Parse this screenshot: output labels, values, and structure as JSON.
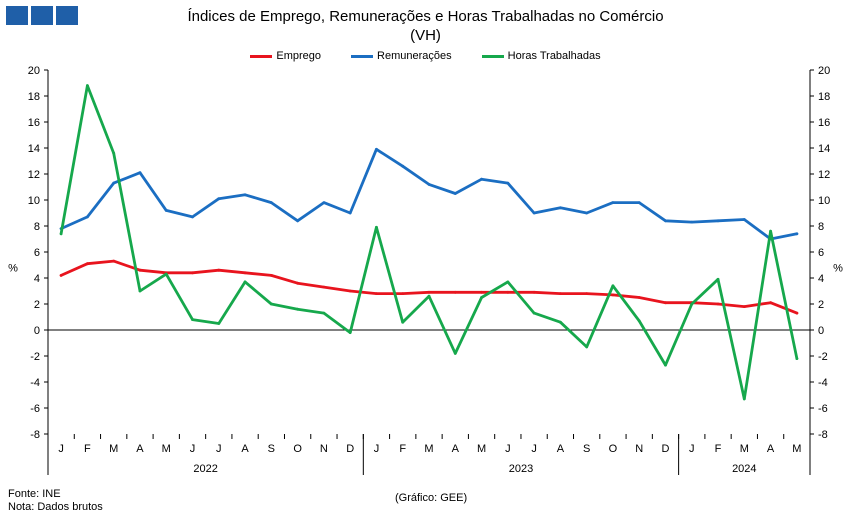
{
  "brand": {
    "colors": [
      "#1f5fa8",
      "#1f5fa8",
      "#1f5fa8"
    ]
  },
  "chart_data": {
    "type": "line",
    "title": "Índices de Emprego, Remunerações e Horas Trabalhadas no Comércio",
    "subtitle": "(VH)",
    "ylabel": "%",
    "y2label": "%",
    "ylim": [
      -8,
      20
    ],
    "yticks": [
      20,
      18,
      16,
      14,
      12,
      10,
      8,
      6,
      4,
      2,
      0,
      -2,
      -4,
      -6,
      -8
    ],
    "grid": false,
    "legend_position": "top",
    "categories": [
      "J",
      "F",
      "M",
      "A",
      "M",
      "J",
      "J",
      "A",
      "S",
      "O",
      "N",
      "D",
      "J",
      "F",
      "M",
      "A",
      "M",
      "J",
      "J",
      "A",
      "S",
      "O",
      "N",
      "D",
      "J",
      "F",
      "M",
      "A",
      "M"
    ],
    "years": [
      {
        "label": "2022",
        "start": 0,
        "end": 12
      },
      {
        "label": "2023",
        "start": 12,
        "end": 24
      },
      {
        "label": "2024",
        "start": 24,
        "end": 29
      }
    ],
    "series": [
      {
        "name": "Emprego",
        "color": "#e8141e",
        "values": [
          4.2,
          5.1,
          5.3,
          4.6,
          4.4,
          4.4,
          4.6,
          4.4,
          4.2,
          3.6,
          3.3,
          3.0,
          2.8,
          2.8,
          2.9,
          2.9,
          2.9,
          2.9,
          2.9,
          2.8,
          2.8,
          2.7,
          2.5,
          2.1,
          2.1,
          2.0,
          1.8,
          2.1,
          1.3
        ]
      },
      {
        "name": "Remunerações",
        "color": "#1b6ec2",
        "values": [
          7.8,
          8.7,
          11.3,
          12.1,
          9.2,
          8.7,
          10.1,
          10.4,
          9.8,
          8.4,
          9.8,
          9.0,
          13.9,
          12.6,
          11.2,
          10.5,
          11.6,
          11.3,
          9.0,
          9.4,
          9.0,
          9.8,
          9.8,
          8.4,
          8.3,
          8.4,
          8.5,
          7.0,
          7.4
        ]
      },
      {
        "name": "Horas Trabalhadas",
        "color": "#16a84c",
        "values": [
          7.4,
          18.8,
          13.6,
          3.0,
          4.3,
          0.8,
          0.5,
          3.7,
          2.0,
          1.6,
          1.3,
          -0.2,
          7.9,
          0.6,
          2.6,
          -1.8,
          2.5,
          3.7,
          1.3,
          0.6,
          -1.3,
          3.4,
          0.7,
          -2.7,
          2.0,
          3.9,
          -5.3,
          7.6,
          -2.2
        ]
      }
    ]
  },
  "footer": {
    "source": "Fonte: INE",
    "note": "Nota: Dados brutos",
    "credit": "(Gráfico: GEE)"
  }
}
